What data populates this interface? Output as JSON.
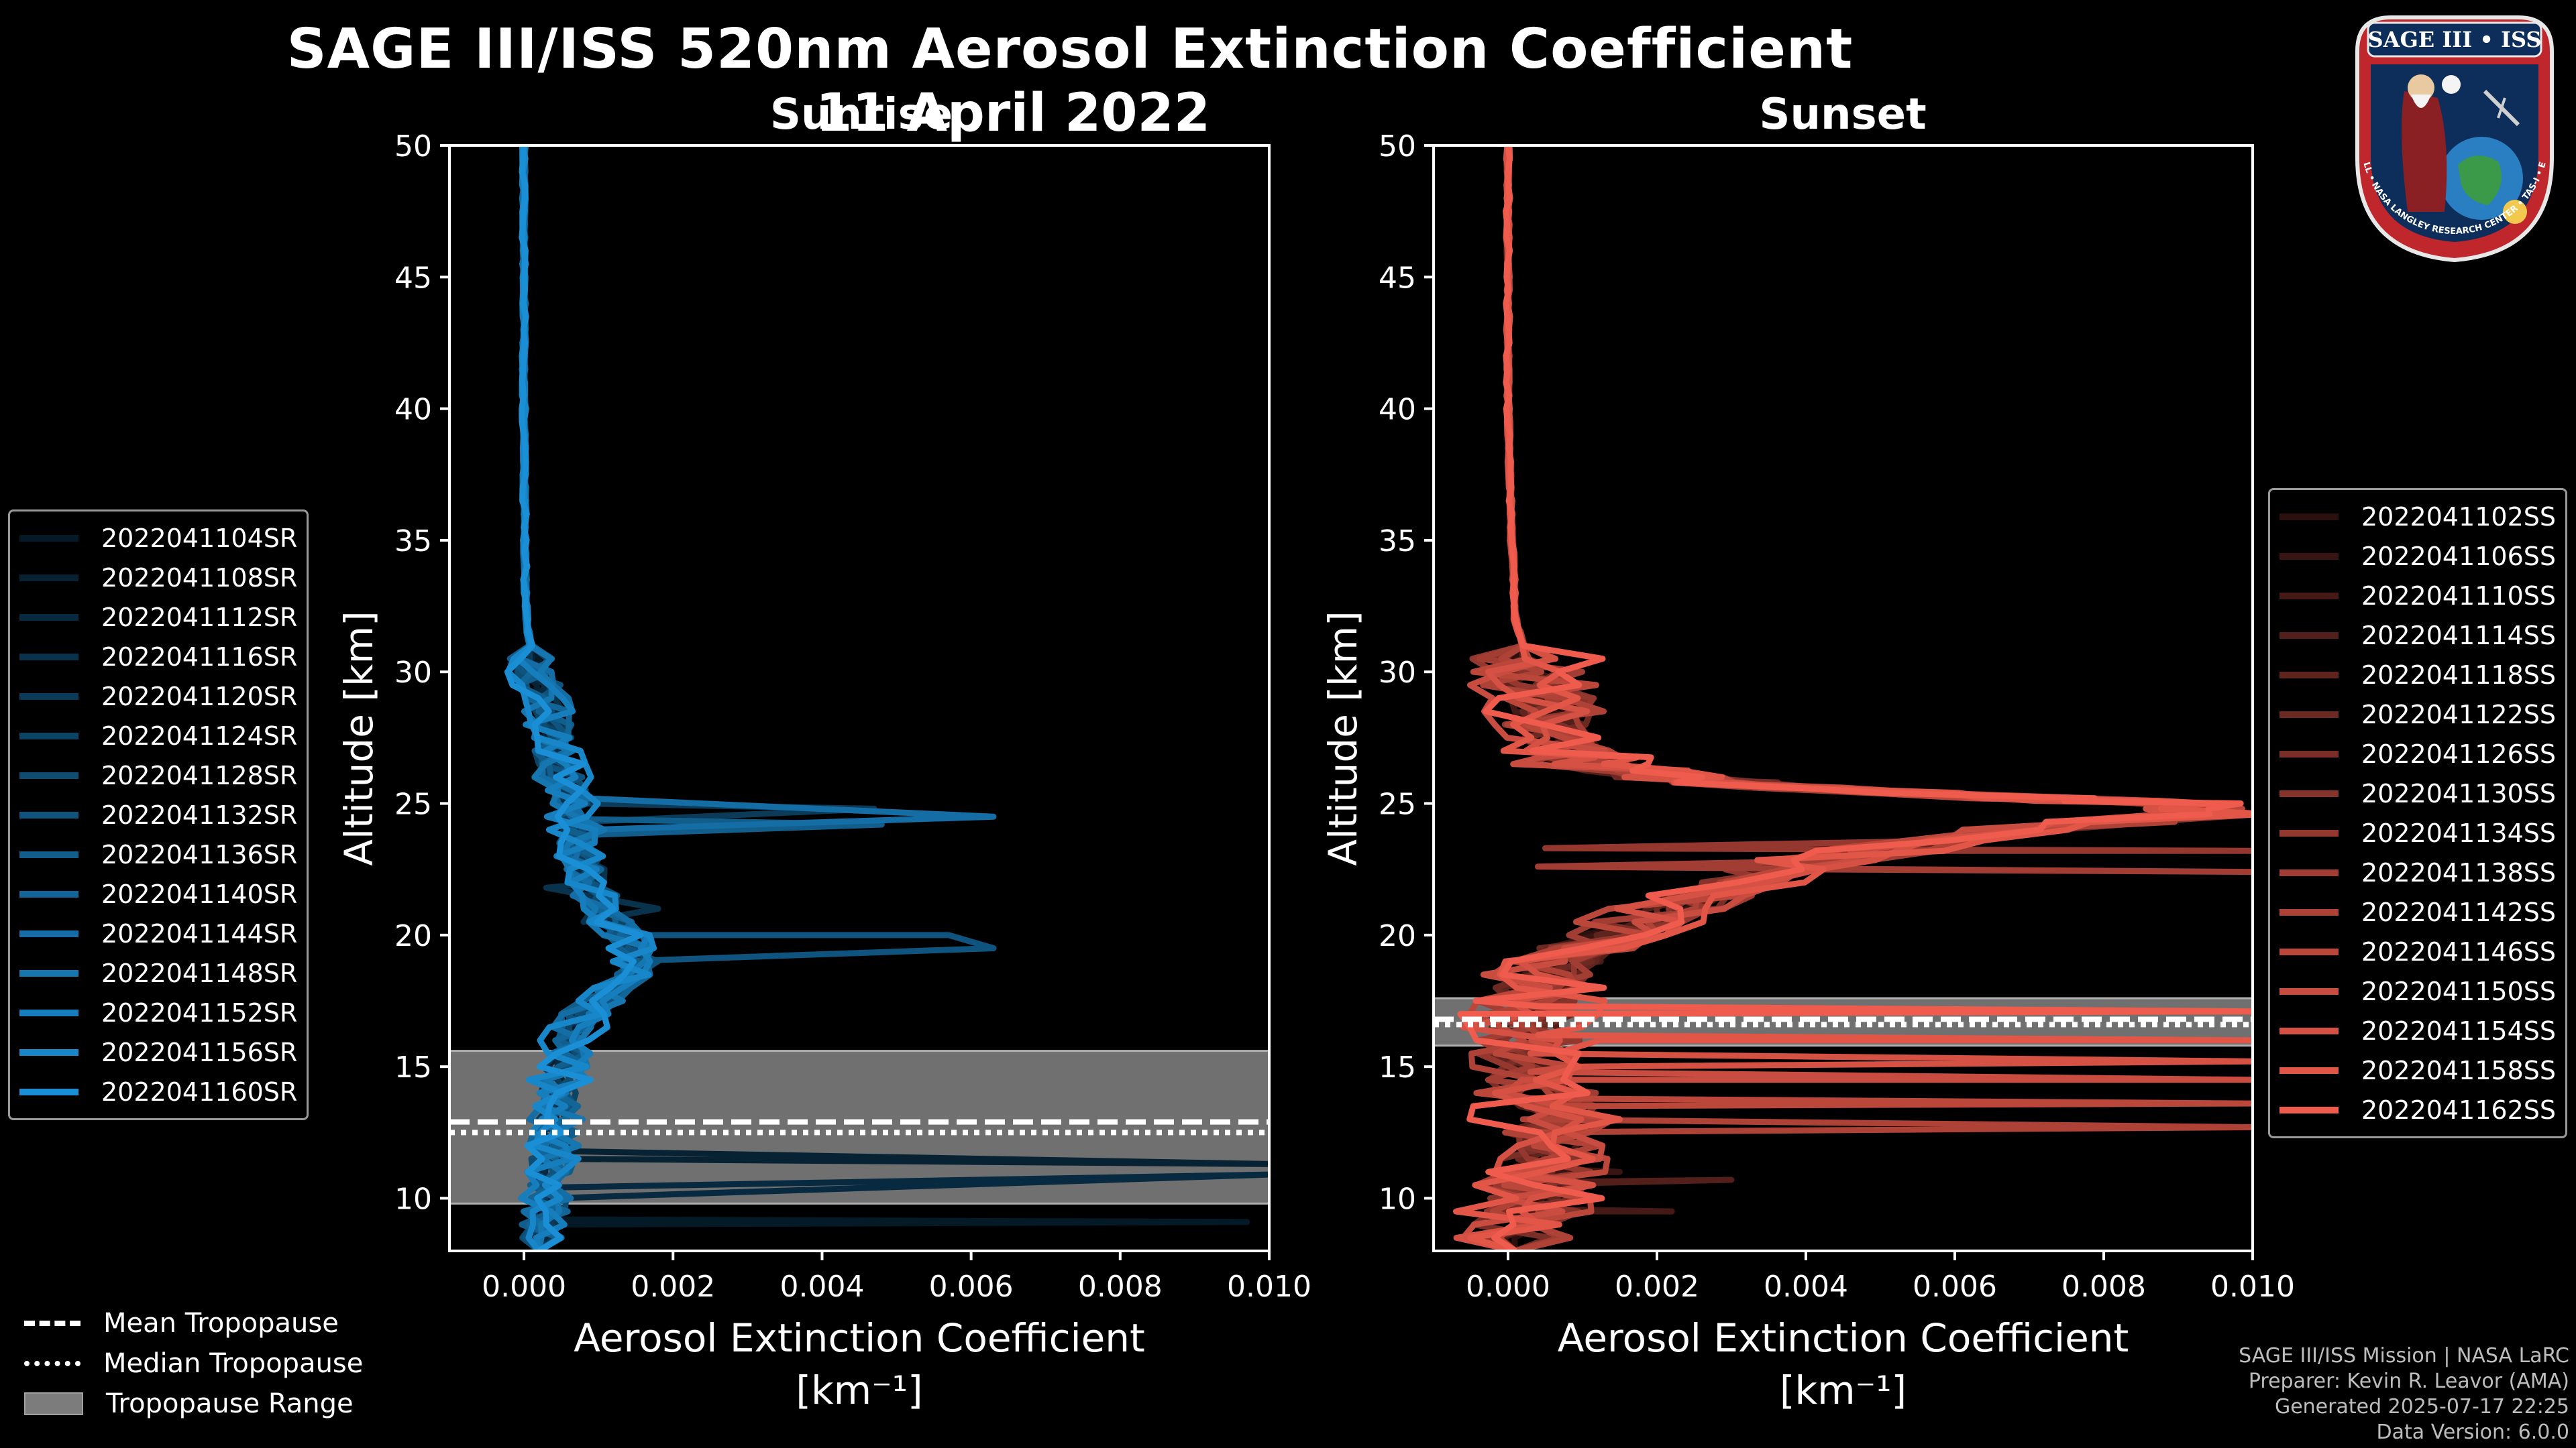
{
  "header": {
    "title": "SAGE III/ISS 520nm Aerosol Extinction Coefficient",
    "date": "11 April 2022"
  },
  "logo": {
    "top_text": "SAGE III • ISS",
    "bottom_text": "BALL • NASA LANGLEY RESEARCH CENTER • TAS-I • ESA"
  },
  "colors": {
    "sunrise": "#1a8fd6",
    "sunset": "#ef5b4c",
    "tropopause_range": "#7c7c7c",
    "background": "#000000"
  },
  "chart_data": [
    {
      "type": "line",
      "panel": "sunrise",
      "title": "Sunrise",
      "xlabel": "Aerosol Extinction Coefficient",
      "xunit": "[km⁻¹]",
      "ylabel": "Altitude [km]",
      "xlim": [
        -0.001,
        0.01
      ],
      "ylim": [
        8,
        50
      ],
      "xticks": [
        "0.000",
        "0.002",
        "0.004",
        "0.006",
        "0.008",
        "0.010"
      ],
      "xtick_values": [
        0,
        0.002,
        0.004,
        0.006,
        0.008,
        0.01
      ],
      "yticks": [
        10,
        15,
        20,
        25,
        30,
        35,
        40,
        45,
        50
      ],
      "tropopause": {
        "mean": 12.9,
        "median": 12.5,
        "range": [
          9.8,
          15.6
        ]
      },
      "series_names": [
        "2022041104SR",
        "2022041108SR",
        "2022041112SR",
        "2022041116SR",
        "2022041120SR",
        "2022041124SR",
        "2022041128SR",
        "2022041132SR",
        "2022041136SR",
        "2022041140SR",
        "2022041144SR",
        "2022041148SR",
        "2022041152SR",
        "2022041156SR",
        "2022041160SR"
      ],
      "base_profile": [
        [
          0,
          50
        ],
        [
          0,
          40
        ],
        [
          1e-05,
          35
        ],
        [
          3e-05,
          32
        ],
        [
          0.00015,
          30
        ],
        [
          0.0003,
          29
        ],
        [
          0.0004,
          27
        ],
        [
          0.0005,
          26
        ],
        [
          0.00065,
          25
        ],
        [
          0.0008,
          23
        ],
        [
          0.001,
          21.5
        ],
        [
          0.0013,
          20
        ],
        [
          0.0016,
          19
        ],
        [
          0.0012,
          18
        ],
        [
          0.0008,
          17
        ],
        [
          0.0006,
          16
        ],
        [
          0.0005,
          15
        ],
        [
          0.00045,
          14
        ],
        [
          0.0004,
          12
        ],
        [
          0.0003,
          10
        ],
        [
          0.0002,
          8
        ]
      ],
      "spikes": [
        {
          "series": "2022041144SR",
          "points": [
            [
              0.0008,
              25.2
            ],
            [
              0.0063,
              24.5
            ],
            [
              0.0009,
              24.0
            ]
          ]
        },
        {
          "series": "2022041120SR",
          "points": [
            [
              0.0007,
              25.0
            ],
            [
              0.0047,
              24.8
            ],
            [
              0.0008,
              24.3
            ]
          ]
        },
        {
          "series": "2022041136SR",
          "points": [
            [
              0.0009,
              24.4
            ],
            [
              0.0048,
              24.2
            ],
            [
              0.0008,
              23.8
            ]
          ]
        },
        {
          "series": "2022041132SR",
          "points": [
            [
              0.0011,
              20.0
            ],
            [
              0.0057,
              20.0
            ],
            [
              0.0063,
              19.5
            ],
            [
              0.0013,
              19.0
            ]
          ]
        },
        {
          "series": "2022041108SR",
          "points": [
            [
              0.0003,
              11.8
            ],
            [
              0.01,
              11.3
            ]
          ]
        },
        {
          "series": "2022041112SR",
          "points": [
            [
              0.0002,
              10.4
            ],
            [
              0.01,
              10.9
            ]
          ]
        },
        {
          "series": "2022041104SR",
          "points": [
            [
              0.0002,
              9.2
            ],
            [
              0.0097,
              9.1
            ]
          ]
        },
        {
          "series": "2022041116SR",
          "points": [
            [
              0.0003,
              21.8
            ],
            [
              0.0018,
              21.0
            ],
            [
              0.0008,
              20.5
            ]
          ]
        }
      ]
    },
    {
      "type": "line",
      "panel": "sunset",
      "title": "Sunset",
      "xlabel": "Aerosol Extinction Coefficient",
      "xunit": "[km⁻¹]",
      "ylabel": "Altitude [km]",
      "xlim": [
        -0.001,
        0.01
      ],
      "ylim": [
        8,
        50
      ],
      "xticks": [
        "0.000",
        "0.002",
        "0.004",
        "0.006",
        "0.008",
        "0.010"
      ],
      "xtick_values": [
        0,
        0.002,
        0.004,
        0.006,
        0.008,
        0.01
      ],
      "yticks": [
        10,
        15,
        20,
        25,
        30,
        35,
        40,
        45,
        50
      ],
      "tropopause": {
        "mean": 16.8,
        "median": 16.6,
        "range": [
          15.8,
          17.6
        ]
      },
      "series_names": [
        "2022041102SS",
        "2022041106SS",
        "2022041110SS",
        "2022041114SS",
        "2022041118SS",
        "2022041122SS",
        "2022041126SS",
        "2022041130SS",
        "2022041134SS",
        "2022041138SS",
        "2022041142SS",
        "2022041146SS",
        "2022041150SS",
        "2022041154SS",
        "2022041158SS",
        "2022041162SS"
      ],
      "base_profile": [
        [
          0,
          50
        ],
        [
          0,
          40
        ],
        [
          5e-05,
          35
        ],
        [
          0.0001,
          32
        ],
        [
          0.0003,
          30
        ],
        [
          0.0006,
          28
        ],
        [
          0.0008,
          27
        ],
        [
          0.001,
          26.5
        ],
        [
          0.002,
          26.0
        ],
        [
          0.004,
          25.6
        ],
        [
          0.007,
          25.2
        ],
        [
          0.009,
          25.0
        ],
        [
          0.0095,
          24.6
        ],
        [
          0.007,
          24.0
        ],
        [
          0.005,
          23.2
        ],
        [
          0.0035,
          22.5
        ],
        [
          0.0025,
          21.5
        ],
        [
          0.0018,
          20.5
        ],
        [
          0.001,
          19.5
        ],
        [
          0.0006,
          18.5
        ],
        [
          0.0003,
          17.5
        ],
        [
          0.0002,
          16.5
        ],
        [
          0.0003,
          15.0
        ],
        [
          0.0005,
          13.5
        ],
        [
          0.0006,
          12.0
        ],
        [
          0.0004,
          10.5
        ],
        [
          0.0002,
          9.0
        ],
        [
          0.0001,
          8
        ]
      ],
      "spikes": [
        {
          "series": "2022041162SS",
          "points": [
            [
              0.0004,
              17.3
            ],
            [
              0.01,
              17.1
            ]
          ]
        },
        {
          "series": "2022041158SS",
          "points": [
            [
              0.0004,
              16.2
            ],
            [
              0.01,
              16.0
            ]
          ]
        },
        {
          "series": "2022041154SS",
          "points": [
            [
              0.0003,
              15.5
            ],
            [
              0.01,
              15.2
            ]
          ]
        },
        {
          "series": "2022041150SS",
          "points": [
            [
              0.0003,
              14.8
            ],
            [
              0.01,
              14.5
            ]
          ]
        },
        {
          "series": "2022041146SS",
          "points": [
            [
              0.0002,
              13.8
            ],
            [
              0.01,
              13.6
            ]
          ]
        },
        {
          "series": "2022041142SS",
          "points": [
            [
              0.0002,
              13.0
            ],
            [
              0.01,
              12.7
            ]
          ]
        },
        {
          "series": "2022041138SS",
          "points": [
            [
              0.0004,
              22.6
            ],
            [
              0.01,
              22.4
            ]
          ]
        },
        {
          "series": "2022041134SS",
          "points": [
            [
              0.0005,
              23.3
            ],
            [
              0.01,
              23.2
            ]
          ]
        },
        {
          "series": "2022041114SS",
          "points": [
            [
              0.0001,
              10.6
            ],
            [
              0.003,
              10.7
            ]
          ]
        },
        {
          "series": "2022041110SS",
          "points": [
            [
              0.0001,
              9.6
            ],
            [
              0.0022,
              9.5
            ]
          ]
        },
        {
          "series": "2022041106SS",
          "points": [
            [
              0.0001,
              11.2
            ],
            [
              0.0015,
              11.0
            ]
          ]
        }
      ]
    }
  ],
  "tropopause_legend": {
    "mean": "Mean Tropopause",
    "median": "Median Tropopause",
    "range": "Tropopause Range"
  },
  "credits": {
    "line1": "SAGE III/ISS Mission | NASA LaRC",
    "line2": "Preparer: Kevin R. Leavor (AMA)",
    "line3": "Generated 2025-07-17 22:25",
    "line4": "Data Version: 6.0.0"
  }
}
